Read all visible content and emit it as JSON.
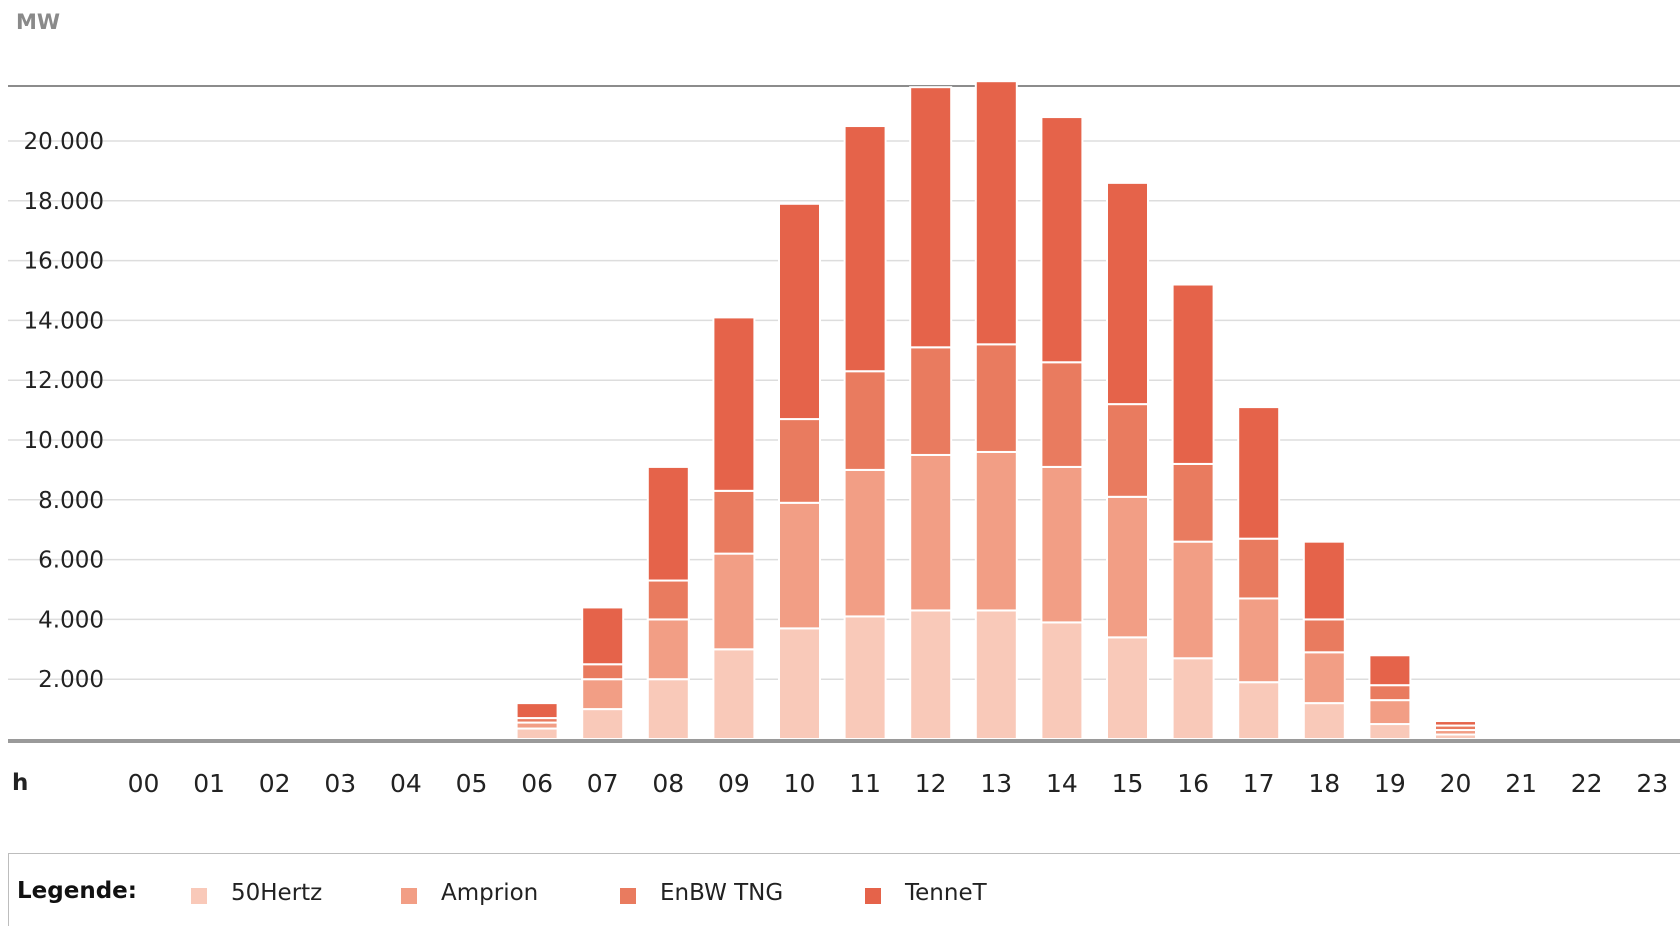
{
  "chart_data": {
    "type": "bar",
    "stacked": true,
    "ylabel": "MW",
    "xlabel": "h",
    "ylim": [
      0,
      22000
    ],
    "yticks": [
      "2.000",
      "4.000",
      "6.000",
      "8.000",
      "10.000",
      "12.000",
      "14.000",
      "16.000",
      "18.000",
      "20.000"
    ],
    "ytick_values": [
      2000,
      4000,
      6000,
      8000,
      10000,
      12000,
      14000,
      16000,
      18000,
      20000
    ],
    "categories": [
      "00",
      "01",
      "02",
      "03",
      "04",
      "05",
      "06",
      "07",
      "08",
      "09",
      "10",
      "11",
      "12",
      "13",
      "14",
      "15",
      "16",
      "17",
      "18",
      "19",
      "20",
      "21",
      "22",
      "23"
    ],
    "grid": true,
    "legend_position": "bottom",
    "series": [
      {
        "name": "50Hertz",
        "color": "#f9c9b9",
        "values": [
          0,
          0,
          0,
          0,
          0,
          0,
          350,
          1000,
          2000,
          3000,
          3700,
          4100,
          4300,
          4300,
          3900,
          3400,
          2700,
          1900,
          1200,
          500,
          150,
          0,
          0,
          0
        ]
      },
      {
        "name": "Amprion",
        "color": "#f29e85",
        "values": [
          0,
          0,
          0,
          0,
          0,
          0,
          200,
          1000,
          2000,
          3200,
          4200,
          4900,
          5200,
          5300,
          5200,
          4700,
          3900,
          2800,
          1700,
          800,
          150,
          0,
          0,
          0
        ]
      },
      {
        "name": "EnBW TNG",
        "color": "#e97b5f",
        "values": [
          0,
          0,
          0,
          0,
          0,
          0,
          150,
          500,
          1300,
          2100,
          2800,
          3300,
          3600,
          3600,
          3500,
          3100,
          2600,
          2000,
          1100,
          500,
          150,
          0,
          0,
          0
        ]
      },
      {
        "name": "TenneT",
        "color": "#e5634a",
        "values": [
          0,
          0,
          0,
          0,
          0,
          0,
          500,
          1900,
          3800,
          5800,
          7200,
          8200,
          8700,
          8800,
          8200,
          7400,
          6000,
          4400,
          2600,
          1000,
          150,
          0,
          0,
          0
        ]
      }
    ]
  },
  "legend": {
    "title": "Legende:"
  },
  "icons": {
    "legend_swatch": "square-swatch-icon"
  }
}
